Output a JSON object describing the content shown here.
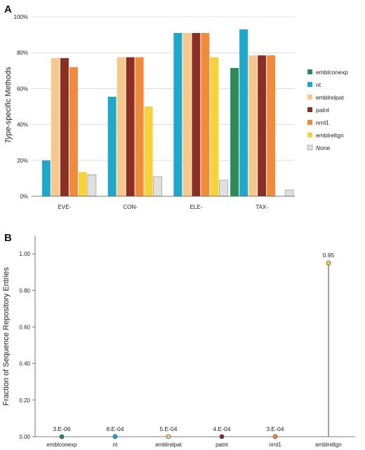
{
  "chart_data": [
    {
      "panel": "A",
      "type": "bar",
      "ylabel_italic": "Type",
      "ylabel_rest": "-specific Methods",
      "ylim": [
        0,
        100
      ],
      "yticks": [
        "0%",
        "20%",
        "40%",
        "60%",
        "80%",
        "100%"
      ],
      "grid": true,
      "legend_position": "right",
      "categories": [
        "EVE-",
        "CON-",
        "ELE-",
        "TAX-"
      ],
      "series": [
        {
          "name": "emblconexp",
          "color": "#2e8b57",
          "values": [
            null,
            null,
            null,
            71.5
          ]
        },
        {
          "name": "nt",
          "color": "#1fa8c9",
          "values": [
            20,
            55.5,
            91,
            93
          ]
        },
        {
          "name": "emblrelpat",
          "color": "#f5c98e",
          "values": [
            77,
            77.5,
            91,
            78.5
          ]
        },
        {
          "name": "patnt",
          "color": "#8b2e23",
          "values": [
            77,
            77.5,
            91,
            78.5
          ]
        },
        {
          "name": "nrnl1",
          "color": "#f08a3c",
          "values": [
            72,
            77.5,
            91,
            78.5
          ]
        },
        {
          "name": "emblreltgn",
          "color": "#f7d23c",
          "values": [
            13.5,
            50,
            77.5,
            null
          ]
        },
        {
          "name": "None",
          "italic": true,
          "color": "#e0e0e0",
          "values": [
            12,
            11,
            9,
            3.5
          ]
        }
      ]
    },
    {
      "panel": "B",
      "type": "scatter",
      "ylabel": "Fraction of Sequence Repository Entries",
      "ylim": [
        0,
        1.1
      ],
      "yticks": [
        "0.00",
        "0.20",
        "0.40",
        "0.60",
        "0.80",
        "1.00"
      ],
      "grid": false,
      "categories": [
        "emblconexp",
        "nt",
        "emblrelpat",
        "patnt",
        "nrnl1",
        "emblreltgn"
      ],
      "values": [
        3e-06,
        0.0008,
        0.0005,
        0.0004,
        0.0003,
        0.95
      ],
      "labels": [
        "3.E-06",
        "8.E-04",
        "5.E-04",
        "4.E-04",
        "3.E-04",
        "0.95"
      ],
      "colors": [
        "#2e8b57",
        "#1fa8c9",
        "#f5c98e",
        "#8b2e23",
        "#f08a3c",
        "#f7d23c"
      ]
    }
  ]
}
